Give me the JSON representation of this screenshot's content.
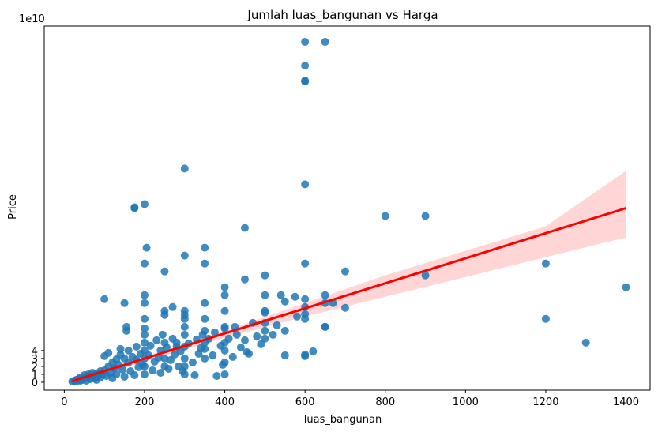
{
  "chart_data": {
    "type": "scatter",
    "title": "Jumlah luas_bangunan vs Harga",
    "xlabel": "luas_bangunan",
    "ylabel": "Price",
    "y_offset_label": "1e10",
    "y_scale": 10000000000,
    "xlim": [
      -50,
      1460
    ],
    "ylim": [
      -1,
      45
    ],
    "x_ticks": [
      0,
      200,
      400,
      600,
      800,
      1000,
      1200,
      1400
    ],
    "y_ticks": [
      0,
      1,
      2,
      3,
      4
    ],
    "grid": false,
    "colors": {
      "points": "#1f77b4",
      "regression_line": "#ff0000",
      "confidence_band": "#ffb3b3"
    },
    "regression": {
      "x": [
        20,
        1400
      ],
      "y": [
        0.15,
        22.0
      ]
    },
    "confidence_band": {
      "x": [
        20,
        200,
        400,
        600,
        800,
        1000,
        1200,
        1400
      ],
      "lower": [
        -0.35,
        2.6,
        5.6,
        8.3,
        10.8,
        13.3,
        15.8,
        18.3
      ],
      "upper": [
        0.55,
        3.1,
        6.5,
        10.0,
        13.5,
        16.6,
        19.7,
        26.7
      ]
    },
    "points": [
      [
        20,
        0.1
      ],
      [
        25,
        0.2
      ],
      [
        30,
        0.3
      ],
      [
        30,
        0.1
      ],
      [
        35,
        0.4
      ],
      [
        40,
        0.2
      ],
      [
        40,
        0.6
      ],
      [
        45,
        0.3
      ],
      [
        50,
        0.5
      ],
      [
        50,
        0.9
      ],
      [
        55,
        0.2
      ],
      [
        60,
        0.7
      ],
      [
        60,
        1.0
      ],
      [
        65,
        0.4
      ],
      [
        70,
        0.8
      ],
      [
        70,
        1.2
      ],
      [
        75,
        0.5
      ],
      [
        80,
        1.1
      ],
      [
        80,
        0.3
      ],
      [
        85,
        0.9
      ],
      [
        90,
        1.4
      ],
      [
        90,
        0.6
      ],
      [
        95,
        1.0
      ],
      [
        100,
        1.5
      ],
      [
        100,
        3.3
      ],
      [
        100,
        10.5
      ],
      [
        105,
        0.8
      ],
      [
        110,
        2.0
      ],
      [
        110,
        3.7
      ],
      [
        115,
        1.2
      ],
      [
        120,
        2.5
      ],
      [
        120,
        0.5
      ],
      [
        125,
        1.8
      ],
      [
        130,
        2.9
      ],
      [
        130,
        1.0
      ],
      [
        135,
        2.2
      ],
      [
        140,
        3.5
      ],
      [
        140,
        4.2
      ],
      [
        145,
        1.6
      ],
      [
        150,
        3.0
      ],
      [
        150,
        10.0
      ],
      [
        150,
        0.7
      ],
      [
        155,
        7.0
      ],
      [
        155,
        6.5
      ],
      [
        160,
        2.5
      ],
      [
        160,
        4.0
      ],
      [
        165,
        1.4
      ],
      [
        170,
        3.2
      ],
      [
        175,
        22.0
      ],
      [
        175,
        22.1
      ],
      [
        175,
        0.9
      ],
      [
        180,
        2.8
      ],
      [
        180,
        4.5
      ],
      [
        185,
        1.9
      ],
      [
        190,
        3.6
      ],
      [
        195,
        2.2
      ],
      [
        200,
        22.5
      ],
      [
        200,
        15.0
      ],
      [
        200,
        11.0
      ],
      [
        200,
        10.0
      ],
      [
        200,
        8.0
      ],
      [
        200,
        6.8
      ],
      [
        200,
        6.0
      ],
      [
        200,
        5.0
      ],
      [
        200,
        4.0
      ],
      [
        200,
        3.0
      ],
      [
        200,
        2.0
      ],
      [
        200,
        1.0
      ],
      [
        205,
        17.0
      ],
      [
        210,
        3.4
      ],
      [
        215,
        4.6
      ],
      [
        220,
        1.5
      ],
      [
        225,
        2.6
      ],
      [
        230,
        5.3
      ],
      [
        235,
        3.1
      ],
      [
        240,
        4.0
      ],
      [
        240,
        1.2
      ],
      [
        245,
        6.0
      ],
      [
        250,
        14.0
      ],
      [
        250,
        9.0
      ],
      [
        250,
        8.5
      ],
      [
        250,
        5.0
      ],
      [
        250,
        3.0
      ],
      [
        250,
        2.0
      ],
      [
        255,
        4.4
      ],
      [
        260,
        1.7
      ],
      [
        265,
        2.8
      ],
      [
        270,
        9.5
      ],
      [
        270,
        5.5
      ],
      [
        275,
        3.5
      ],
      [
        280,
        5.0
      ],
      [
        280,
        4.5
      ],
      [
        285,
        2.0
      ],
      [
        290,
        3.9
      ],
      [
        295,
        1.4
      ],
      [
        300,
        27.0
      ],
      [
        300,
        16.0
      ],
      [
        300,
        9.0
      ],
      [
        300,
        8.5
      ],
      [
        300,
        8.0
      ],
      [
        300,
        7.0
      ],
      [
        300,
        6.0
      ],
      [
        300,
        4.5
      ],
      [
        300,
        3.0
      ],
      [
        300,
        2.0
      ],
      [
        300,
        1.0
      ],
      [
        310,
        4.9
      ],
      [
        320,
        2.5
      ],
      [
        325,
        0.9
      ],
      [
        330,
        5.4
      ],
      [
        335,
        3.6
      ],
      [
        340,
        4.3
      ],
      [
        345,
        6.0
      ],
      [
        350,
        17.0
      ],
      [
        350,
        15.0
      ],
      [
        350,
        10.0
      ],
      [
        350,
        8.0
      ],
      [
        350,
        6.5
      ],
      [
        350,
        5.0
      ],
      [
        350,
        4.2
      ],
      [
        350,
        3.0
      ],
      [
        360,
        5.5
      ],
      [
        370,
        3.4
      ],
      [
        375,
        6.3
      ],
      [
        380,
        0.8
      ],
      [
        390,
        4.6
      ],
      [
        395,
        2.2
      ],
      [
        400,
        12.0
      ],
      [
        400,
        11.0
      ],
      [
        400,
        9.0
      ],
      [
        400,
        7.0
      ],
      [
        400,
        6.8
      ],
      [
        400,
        5.0
      ],
      [
        400,
        4.0
      ],
      [
        400,
        2.5
      ],
      [
        400,
        1.0
      ],
      [
        410,
        5.5
      ],
      [
        420,
        3.2
      ],
      [
        425,
        7.0
      ],
      [
        430,
        6.0
      ],
      [
        440,
        4.4
      ],
      [
        450,
        19.5
      ],
      [
        450,
        13.0
      ],
      [
        450,
        5.3
      ],
      [
        455,
        3.8
      ],
      [
        460,
        3.6
      ],
      [
        470,
        7.5
      ],
      [
        480,
        5.8
      ],
      [
        490,
        4.8
      ],
      [
        500,
        13.5
      ],
      [
        500,
        11.0
      ],
      [
        500,
        9.0
      ],
      [
        500,
        8.8
      ],
      [
        500,
        7.5
      ],
      [
        500,
        6.5
      ],
      [
        500,
        5.5
      ],
      [
        520,
        6.0
      ],
      [
        530,
        7.2
      ],
      [
        540,
        11.0
      ],
      [
        550,
        10.2
      ],
      [
        550,
        6.5
      ],
      [
        550,
        3.4
      ],
      [
        575,
        10.8
      ],
      [
        580,
        8.3
      ],
      [
        600,
        43.0
      ],
      [
        600,
        40.0
      ],
      [
        600,
        38.1
      ],
      [
        600,
        38.0
      ],
      [
        600,
        25.0
      ],
      [
        600,
        15.0
      ],
      [
        600,
        10.5
      ],
      [
        600,
        9.5
      ],
      [
        600,
        8.6
      ],
      [
        600,
        8.0
      ],
      [
        600,
        3.5
      ],
      [
        600,
        3.3
      ],
      [
        620,
        3.9
      ],
      [
        650,
        43.0
      ],
      [
        650,
        11.0
      ],
      [
        650,
        10.0
      ],
      [
        650,
        7.0
      ],
      [
        650,
        7.0
      ],
      [
        670,
        10.0
      ],
      [
        700,
        14.0
      ],
      [
        700,
        9.4
      ],
      [
        800,
        21.0
      ],
      [
        900,
        21.0
      ],
      [
        900,
        13.5
      ],
      [
        1200,
        15.0
      ],
      [
        1200,
        8.0
      ],
      [
        1300,
        5.0
      ],
      [
        1400,
        12.0
      ]
    ]
  }
}
